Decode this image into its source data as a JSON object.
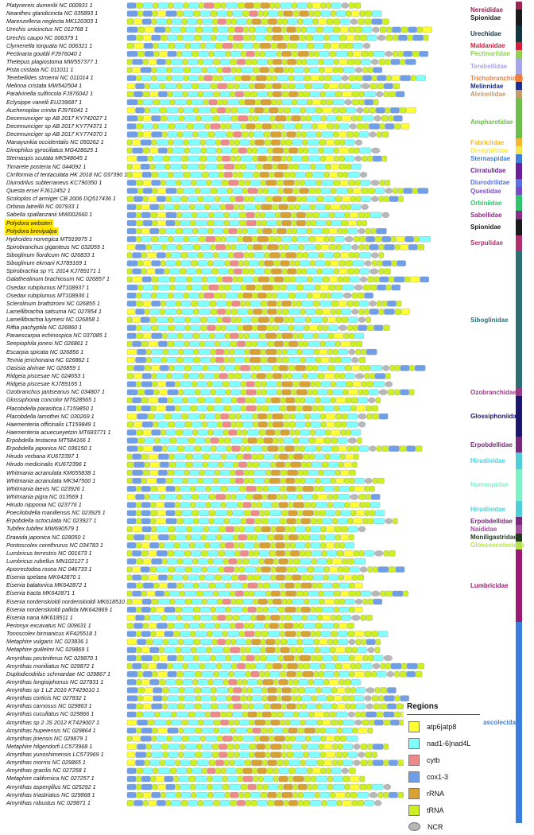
{
  "colors": {
    "atp": "#ffff33",
    "nad": "#80ffff",
    "cytb": "#f08a8a",
    "cox": "#6e9fe8",
    "rRNA": "#d9a132",
    "tRNA": "#ccf020",
    "NCR": "#b8b8b8"
  },
  "species": [
    {
      "name": "Platynereis dumerilii NC 000931 1"
    },
    {
      "name": "Neanthes glandicincta NC 035893 1"
    },
    {
      "name": "Marenzelleria neglecta MK120303 1"
    },
    {
      "name": "Urechis unicinctus NC 012768 1"
    },
    {
      "name": "Urechis caupo NC 006379 1"
    },
    {
      "name": "Clymenella torquata NC 006321 1"
    },
    {
      "name": "Pectinaria gouldii FJ976040 1"
    },
    {
      "name": "Thelepus plagiostoma MW557377 1"
    },
    {
      "name": "Pista cristata NC 011011 1"
    },
    {
      "name": "Terebellides stroemii NC 011014 1"
    },
    {
      "name": "Melinna cristata MW542504 1"
    },
    {
      "name": "Paralvinella sulfincola FJ976042 1"
    },
    {
      "name": "Eclysippe vanelli EU239687 1"
    },
    {
      "name": "Auchenoplax crinita FJ976041 1"
    },
    {
      "name": "Decemunciger sp AB 2017 KY742027 1"
    },
    {
      "name": "Decemunciger sp AB 2017 KY774371 1"
    },
    {
      "name": "Decemunciger sp AB 2017 KY774370 1"
    },
    {
      "name": "Manayunkia occidentalis NC 050262 1"
    },
    {
      "name": "Dinophilus gyrociliatus MG428625 1"
    },
    {
      "name": "Sternaspis scutata MK548645 1"
    },
    {
      "name": "Timarete posteria NC 044092 1"
    },
    {
      "name": "Cirriformia cf tentaculata HK 2018 NC 037390 1"
    },
    {
      "name": "Diurodrilus subterraneus KC790350 1"
    },
    {
      "name": "Questa ersei FJ612452 1"
    },
    {
      "name": "Scoloplos cf armiger CB 2006 DQ517436 1"
    },
    {
      "name": "Orbinia latreillii NC 007933 1"
    },
    {
      "name": "Sabella spallanzanii MW002660 1"
    },
    {
      "name": "Polydora websteri",
      "highlight": true
    },
    {
      "name": "Polydora brevipalpa",
      "highlight": true
    },
    {
      "name": "Hydroides norvegica MT919975 1"
    },
    {
      "name": "Spirobranchus giganteus NC 032055 1"
    },
    {
      "name": "Siboglinum fiordicum NC 026833 1"
    },
    {
      "name": "Siboglinum ekmani KJ789169 1"
    },
    {
      "name": "Spirobrachia sp YL 2014 KJ789171 1"
    },
    {
      "name": "Galathealinum brachiosum NC 026857 1"
    },
    {
      "name": "Osedax rubiplumus MT108937 1"
    },
    {
      "name": "Osedax rubiplumus MT108936 1"
    },
    {
      "name": "Sclerolinum brattstromi NC 026855 1"
    },
    {
      "name": "Lamellibrachia satsuma NC 027854 1"
    },
    {
      "name": "Lamellibrachia luymesi NC 026858 1"
    },
    {
      "name": "Riftia pachyptila NC 026860 1"
    },
    {
      "name": "Paraescarpia echinospica NC 037085 1"
    },
    {
      "name": "Seepiophila jonesi NC 026861 1"
    },
    {
      "name": "Escarpia spicata NC 026856 1"
    },
    {
      "name": "Tevnia jerichonana NC 026862 1"
    },
    {
      "name": "Oasisia alvinae NC 026859 1"
    },
    {
      "name": "Ridgeia piscesae NC 024653 1"
    },
    {
      "name": "Ridgeia piscesae KJ789165 1"
    },
    {
      "name": "Ozobranchus jantseanus NC 034807 1"
    },
    {
      "name": "Glossiphonia concolor MT628565 1"
    },
    {
      "name": "Placobdella parasitica LT159850 1"
    },
    {
      "name": "Placobdella lamothei NC 030269 1"
    },
    {
      "name": "Haementeria officinalis LT159849 1"
    },
    {
      "name": "Haementeria acuecueyetzin MT683771 1"
    },
    {
      "name": "Erpobdella testacea MT584166 1"
    },
    {
      "name": "Erpobdella japonica NC 036150 1"
    },
    {
      "name": "Hirudo verbana KU672397 1"
    },
    {
      "name": "Hirudo medicinalis KU672396 1"
    },
    {
      "name": "Whitmania acranulata KM655838 1"
    },
    {
      "name": "Whitmania acranulata MK347500 1"
    },
    {
      "name": "Whitmania laevis NC 023926 1"
    },
    {
      "name": "Whitmania pigra NC 013569 1"
    },
    {
      "name": "Hirudo nipponia NC 023776 1"
    },
    {
      "name": "Poecilobdella manillensis NC 023925 1"
    },
    {
      "name": "Erpobdella octoculata NC 023927 1"
    },
    {
      "name": "Tubifex tubifex MW690579 1"
    },
    {
      "name": "Drawida japonica NC 028050 1"
    },
    {
      "name": "Pontoscolex corethrurus NC 034783 1"
    },
    {
      "name": "Lumbricus terrestris NC 001673 1"
    },
    {
      "name": "Lumbricus rubellus MN102127 1"
    },
    {
      "name": "Aporrectodea rosea NC 046733 1"
    },
    {
      "name": "Eisenia spelaea MK642870 1"
    },
    {
      "name": "Eisenia balatonica MK642872 1"
    },
    {
      "name": "Eisenia tracta MK642871 1"
    },
    {
      "name": "Eisenia nordenskioldi nordenskioldi MK618510 1"
    },
    {
      "name": "Eisenia nordenskioldi pallida MK642869 1"
    },
    {
      "name": "Eisenia nana MK618511 1"
    },
    {
      "name": "Perionyx excavatus NC 009631 1"
    },
    {
      "name": "Tonoscolex birmanicus KF425518 1"
    },
    {
      "name": "Metaphire vulgaris NC 023836 1"
    },
    {
      "name": "Metaphire guillelmi NC 029869 1"
    },
    {
      "name": "Amynthas pectiniferus NC 029870 1"
    },
    {
      "name": "Amynthas moniliatus NC 029872 1"
    },
    {
      "name": "Duplodicodrilus schmardae NC 029867 1"
    },
    {
      "name": "Amynthas longisiphonus NC 027831 1"
    },
    {
      "name": "Amynthas sp 1 LZ 2016 KT429010 1"
    },
    {
      "name": "Amynthas corticis NC 027832 1"
    },
    {
      "name": "Amynthas carnosus NC 029863 1"
    },
    {
      "name": "Amynthas cucullatus NC 029866 1"
    },
    {
      "name": "Amynthas sp 2 JS 2012 KT429007 1"
    },
    {
      "name": "Amynthas hupeiensis NC 029864 1"
    },
    {
      "name": "Amynthas jiriensis NC 029879 1"
    },
    {
      "name": "Metaphire hilgendorfi LC573968 1"
    },
    {
      "name": "Amynthas yunoshimensis LC573969 1"
    },
    {
      "name": "Amynthas morrisi NC 029865 1"
    },
    {
      "name": "Amynthas gracilis NC 027258 1"
    },
    {
      "name": "Metaphire californica NC 027257 1"
    },
    {
      "name": "Amynthas aspergillus NC 025292 1"
    },
    {
      "name": "Amynthas triastriatus NC 029868 1"
    },
    {
      "name": "Amynthas robustus NC 029871 1"
    }
  ],
  "families": [
    {
      "label": "Nereididae",
      "color": "#9c2452"
    },
    {
      "label": "Spionidae",
      "color": "#1a1a1a"
    },
    {
      "label": "Urechidae",
      "color": "#14363f"
    },
    {
      "label": "Maldanidae",
      "color": "#d81b3c"
    },
    {
      "label": "Pectinariidae",
      "color": "#8fd14f"
    },
    {
      "label": "Terebellidae",
      "color": "#a8a4ea"
    },
    {
      "label": "Trichobranchidae",
      "color": "#f07f3c"
    },
    {
      "label": "Melinnidae",
      "color": "#1f2f8f"
    },
    {
      "label": "Alvinellidae",
      "color": "#c49a6c"
    },
    {
      "label": "Ampharetidae",
      "color": "#6cc04a"
    },
    {
      "label": "Fabriciidae",
      "color": "#f5b731"
    },
    {
      "label": "Dinophilidae",
      "color": "#f2e94e"
    },
    {
      "label": "Sternaspidae",
      "color": "#3f7fd9"
    },
    {
      "label": "Cirratulidae",
      "color": "#6a1f9a"
    },
    {
      "label": "Diurodrilidae",
      "color": "#5a6fe0"
    },
    {
      "label": "Questidae",
      "color": "#7a4cc4"
    },
    {
      "label": "Orbiniidae",
      "color": "#2fc46a"
    },
    {
      "label": "Sabellidae",
      "color": "#8a2b86"
    },
    {
      "label": "Spionidae",
      "color": "#1a1a1a"
    },
    {
      "label": "Serpulidae",
      "color": "#b0306d"
    },
    {
      "label": "Siboglinidae",
      "color": "#2c6e73"
    },
    {
      "label": "Ozobranchidae",
      "color": "#9c3a87"
    },
    {
      "label": "Glossiphoniidae",
      "color": "#1c1670"
    },
    {
      "label": "Erpobdellidae",
      "color": "#7b2a7b"
    },
    {
      "label": "Hirudinidae",
      "color": "#4fd0d9"
    },
    {
      "label": "Haemopidae",
      "color": "#7ff0c8"
    },
    {
      "label": "Hirudinidae",
      "color": "#4fd0d9"
    },
    {
      "label": "Erpobdellidae",
      "color": "#7b2a7b"
    },
    {
      "label": "Naididae",
      "color": "#a24f9c"
    },
    {
      "label": "Moniligastridae",
      "color": "#1d3a1d"
    },
    {
      "label": "Glossoscolecidae",
      "color": "#b7e34a"
    },
    {
      "label": "Lumbricidae",
      "color": "#9c1a72"
    },
    {
      "label": "Megascolecidae",
      "color": "#3a7fe0"
    }
  ],
  "legend": {
    "title": "Regions",
    "items": [
      {
        "label": "atp6|atp8",
        "key": "atp"
      },
      {
        "label": "nad1-6|nad4L",
        "key": "nad"
      },
      {
        "label": "cytb",
        "key": "cytb"
      },
      {
        "label": "cox1-3",
        "key": "cox"
      },
      {
        "label": "rRNA",
        "key": "rRNA"
      },
      {
        "label": "tRNA",
        "key": "tRNA"
      },
      {
        "label": "NCR",
        "key": "NCR"
      }
    ]
  }
}
